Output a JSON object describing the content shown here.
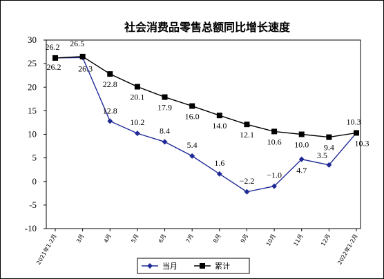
{
  "chart_data": {
    "type": "line",
    "title": "社会消费品零售总额同比增长速度",
    "xlabel": "",
    "ylabel": "",
    "ylim": [
      -10,
      30
    ],
    "yticks": [
      "-10",
      "-5",
      "0",
      "5",
      "10",
      "15",
      "20",
      "25",
      "30"
    ],
    "categories": [
      "2021年1-2月",
      "3月",
      "4月",
      "5月",
      "6月",
      "7月",
      "8月",
      "9月",
      "10月",
      "11月",
      "12月",
      "2022年1-2月"
    ],
    "series": [
      {
        "name": "当月",
        "color": "#1f2a96",
        "marker": "diamond",
        "values": [
          26.2,
          26.3,
          12.8,
          10.2,
          8.4,
          5.4,
          1.6,
          -2.2,
          -1.0,
          4.7,
          3.5,
          10.3
        ],
        "labels": [
          "26.2",
          "26.3",
          "12.8",
          "10.2",
          "8.4",
          "5.4",
          "1.6",
          "−2.2",
          "−1.0",
          "4.7",
          "3.5",
          "10.3"
        ]
      },
      {
        "name": "累计",
        "color": "#000000",
        "marker": "square",
        "values": [
          26.2,
          26.5,
          22.8,
          20.1,
          17.9,
          16.0,
          14.0,
          12.1,
          10.6,
          10.0,
          9.4,
          10.3
        ],
        "labels": [
          "26.2",
          "26.5",
          "22.8",
          "20.1",
          "17.9",
          "16.0",
          "14.0",
          "12.1",
          "10.6",
          "10.0",
          "9.4",
          "10.3"
        ]
      }
    ],
    "legend": "bottom",
    "grid": false
  }
}
